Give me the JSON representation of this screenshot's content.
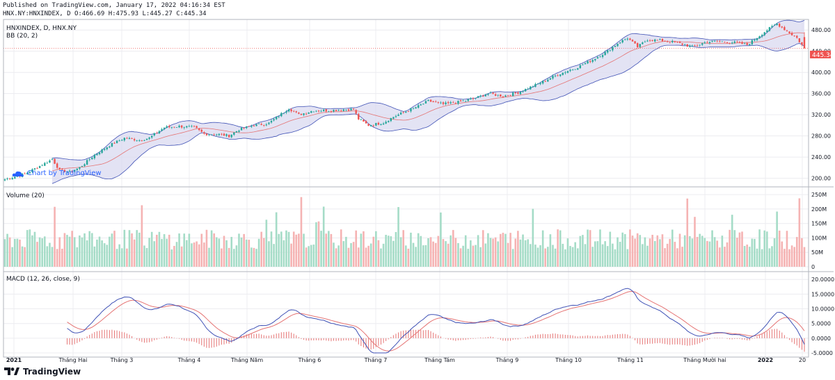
{
  "header": {
    "published": "Published on TradingView.com, January 17, 2022 04:16:34 EST",
    "ohlc": "HNX.NY:HNXINDEX, D O:466.69 H:475.93 L:445.27 C:445.34"
  },
  "panes": {
    "price_title": "HNXINDEX, D, HNX.NY",
    "bb_title": "BB (20, 2)",
    "volume_title": "Volume (20)",
    "macd_title": "MACD (12, 26, close, 9)",
    "last_price_label": "445.34"
  },
  "watermark": {
    "text": "Chart by TradingView"
  },
  "footer": {
    "brand": "TradingView"
  },
  "colors": {
    "up": "#26a69a",
    "down": "#ef5350",
    "band_fill": "#d9d9f0",
    "band_line": "#3f51b5",
    "basis": "#e57373",
    "macd": "#3f51b5",
    "signal": "#e57373",
    "grid": "#ececf0",
    "vol_up": "#a5dcc7",
    "vol_down": "#f5b3b3"
  },
  "chart_data": [
    {
      "type": "candlestick",
      "title": "HNXINDEX, D, HNX.NY",
      "ylim": [
        185,
        500
      ],
      "y_ticks": [
        "200.00",
        "240.00",
        "280.00",
        "320.00",
        "360.00",
        "400.00",
        "440.00",
        "480.00"
      ],
      "x_ticks": [
        "2021",
        "Tháng Hai",
        "Tháng 3",
        "Tháng 4",
        "Tháng Năm",
        "Tháng 6",
        "Tháng 7",
        "Tháng Tám",
        "Tháng 9",
        "Tháng 10",
        "Tháng 11",
        "Tháng Mười hai",
        "2022",
        "20"
      ],
      "close_anchors": [
        [
          0,
          198
        ],
        [
          8,
          208
        ],
        [
          16,
          228
        ],
        [
          19,
          236
        ],
        [
          22,
          215
        ],
        [
          26,
          212
        ],
        [
          30,
          220
        ],
        [
          36,
          244
        ],
        [
          42,
          262
        ],
        [
          48,
          276
        ],
        [
          54,
          272
        ],
        [
          58,
          276
        ],
        [
          64,
          296
        ],
        [
          70,
          298
        ],
        [
          76,
          296
        ],
        [
          80,
          284
        ],
        [
          86,
          283
        ],
        [
          90,
          280
        ],
        [
          94,
          292
        ],
        [
          100,
          300
        ],
        [
          106,
          304
        ],
        [
          110,
          318
        ],
        [
          114,
          332
        ],
        [
          118,
          320
        ],
        [
          124,
          328
        ],
        [
          130,
          328
        ],
        [
          136,
          330
        ],
        [
          140,
          330
        ],
        [
          142,
          312
        ],
        [
          146,
          300
        ],
        [
          152,
          305
        ],
        [
          156,
          316
        ],
        [
          162,
          328
        ],
        [
          166,
          336
        ],
        [
          170,
          346
        ],
        [
          176,
          340
        ],
        [
          182,
          344
        ],
        [
          188,
          350
        ],
        [
          194,
          360
        ],
        [
          200,
          355
        ],
        [
          206,
          362
        ],
        [
          214,
          378
        ],
        [
          222,
          396
        ],
        [
          230,
          410
        ],
        [
          236,
          424
        ],
        [
          242,
          440
        ],
        [
          246,
          455
        ],
        [
          250,
          465
        ],
        [
          254,
          448
        ],
        [
          258,
          462
        ],
        [
          264,
          460
        ],
        [
          270,
          456
        ],
        [
          276,
          448
        ],
        [
          282,
          458
        ],
        [
          288,
          458
        ],
        [
          294,
          456
        ],
        [
          298,
          452
        ],
        [
          302,
          466
        ],
        [
          306,
          480
        ],
        [
          310,
          492
        ],
        [
          314,
          478
        ],
        [
          318,
          465
        ],
        [
          321,
          445.34
        ]
      ],
      "bollinger": {
        "length": 20,
        "mult": 2
      },
      "last_ohlc": {
        "open": 466.69,
        "high": 475.93,
        "low": 445.27,
        "close": 445.34
      }
    },
    {
      "type": "bar",
      "title": "Volume (20)",
      "ylim": [
        0,
        260
      ],
      "unit": "M",
      "y_ticks": [
        "250M",
        "200M",
        "150M",
        "100M",
        "50M",
        "0"
      ]
    },
    {
      "type": "line",
      "title": "MACD (12, 26, close, 9)",
      "ylim": [
        -5,
        21
      ],
      "y_ticks": [
        "20.0000",
        "15.0000",
        "10.0000",
        "5.0000",
        "0.0000",
        "-5.0000"
      ],
      "series": [
        {
          "name": "MACD"
        },
        {
          "name": "Signal"
        },
        {
          "name": "Histogram"
        }
      ]
    }
  ]
}
